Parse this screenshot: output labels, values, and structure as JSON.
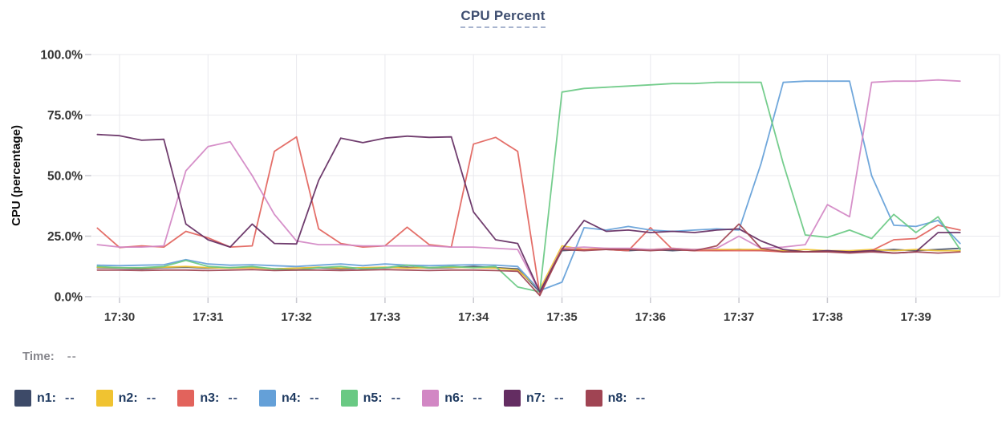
{
  "title": "CPU Percent",
  "y_axis": {
    "label": "CPU (percentage)",
    "tick_labels": [
      "0.0%",
      "25.0%",
      "50.0%",
      "75.0%",
      "100.0%"
    ],
    "tick_values": [
      0,
      25,
      50,
      75,
      100
    ]
  },
  "x_axis": {
    "tick_labels": [
      "17:30",
      "17:31",
      "17:32",
      "17:33",
      "17:34",
      "17:35",
      "17:36",
      "17:37",
      "17:38",
      "17:39"
    ],
    "tick_minutes": [
      30,
      31,
      32,
      33,
      34,
      35,
      36,
      37,
      38,
      39
    ]
  },
  "time_row": {
    "label": "Time:",
    "value": "--"
  },
  "legend": {
    "items": [
      {
        "label": "n1:",
        "value": "--",
        "color": "#3d4a68"
      },
      {
        "label": "n2:",
        "value": "--",
        "color": "#f0c331"
      },
      {
        "label": "n3:",
        "value": "--",
        "color": "#e2635c"
      },
      {
        "label": "n4:",
        "value": "--",
        "color": "#64a0d8"
      },
      {
        "label": "n5:",
        "value": "--",
        "color": "#69c983"
      },
      {
        "label": "n6:",
        "value": "--",
        "color": "#d287c4"
      },
      {
        "label": "n7:",
        "value": "--",
        "color": "#642d62"
      },
      {
        "label": "n8:",
        "value": "--",
        "color": "#a04453"
      }
    ]
  },
  "chart_data": {
    "type": "line",
    "title": "CPU Percent",
    "ylabel": "CPU (percentage)",
    "ylim": [
      0,
      100
    ],
    "grid": true,
    "legend_position": "bottom",
    "x_minutes_after_17h": [
      29.75,
      30,
      30.25,
      30.5,
      30.75,
      31,
      31.25,
      31.5,
      31.75,
      32,
      32.25,
      32.5,
      32.75,
      33,
      33.25,
      33.5,
      33.75,
      34,
      34.25,
      34.5,
      34.75,
      35,
      35.25,
      35.5,
      35.75,
      36,
      36.25,
      36.5,
      36.75,
      37,
      37.25,
      37.5,
      37.75,
      38,
      38.25,
      38.5,
      38.75,
      39,
      39.25,
      39.5
    ],
    "series": [
      {
        "name": "n1",
        "color": "#3d4a68",
        "values": [
          12,
          11.8,
          11.5,
          12,
          12.2,
          11.8,
          12,
          12.2,
          11.5,
          11.8,
          12,
          11.5,
          11.8,
          12,
          12.2,
          11.8,
          12,
          12.5,
          12,
          11.5,
          2,
          19,
          19.5,
          19.5,
          19,
          19.5,
          19,
          19.5,
          19,
          19.5,
          19,
          19,
          18.5,
          19,
          18.5,
          19,
          19.5,
          19,
          19.5,
          20
        ]
      },
      {
        "name": "n2",
        "color": "#f0c331",
        "values": [
          12.2,
          12,
          11.8,
          12.2,
          12.5,
          12,
          11.8,
          12,
          11.5,
          11.8,
          12.2,
          11.8,
          12,
          12.2,
          11.8,
          12,
          12.2,
          12,
          11.8,
          11,
          3,
          21,
          19.5,
          20,
          19.5,
          19.5,
          20,
          19.5,
          19.5,
          19.5,
          19.5,
          19,
          19.5,
          19,
          19,
          19.5,
          19,
          19.5,
          19,
          19
        ]
      },
      {
        "name": "n3",
        "color": "#e2635c",
        "values": [
          28.3,
          20.3,
          21,
          20.5,
          27,
          24.3,
          20.5,
          21,
          60,
          66,
          28,
          22,
          20.5,
          21,
          28.7,
          21.5,
          20.5,
          63,
          65.8,
          60,
          1,
          19.5,
          19.5,
          19.5,
          19,
          28.5,
          19.5,
          19,
          19,
          19,
          19,
          18.5,
          18.5,
          18.5,
          18.5,
          19,
          23.5,
          24,
          29.5,
          27.5
        ]
      },
      {
        "name": "n4",
        "color": "#64a0d8",
        "values": [
          13,
          12.8,
          13,
          13.2,
          15.3,
          13.5,
          13,
          13.2,
          12.8,
          12.5,
          13,
          13.5,
          12.8,
          13.5,
          13,
          12.8,
          13,
          13.2,
          13,
          12.5,
          2.5,
          6,
          28.5,
          27.5,
          29,
          27.5,
          27,
          27.5,
          28,
          27.5,
          55,
          88.5,
          89,
          89,
          89,
          50,
          29.5,
          29,
          31.5,
          22
        ]
      },
      {
        "name": "n5",
        "color": "#69c983",
        "values": [
          12.5,
          12,
          12,
          12.5,
          15,
          12.5,
          12,
          12.5,
          11.5,
          11,
          12,
          12.5,
          11.5,
          12,
          13,
          12,
          12.5,
          12,
          12.5,
          4,
          2,
          84.5,
          86,
          86.5,
          87,
          87.5,
          88,
          88,
          88.5,
          88.5,
          88.5,
          55,
          25.5,
          24.5,
          27.5,
          24,
          34,
          26.5,
          33,
          19.5
        ]
      },
      {
        "name": "n6",
        "color": "#d287c4",
        "values": [
          21.5,
          20.5,
          20.5,
          21,
          52,
          62,
          64,
          50,
          34,
          23,
          21.5,
          21.5,
          21,
          21,
          21,
          21,
          20.5,
          20.5,
          20,
          19.5,
          2,
          20,
          20.5,
          20,
          20,
          19.5,
          20,
          19.5,
          20,
          25,
          20,
          20.5,
          21.5,
          38,
          33,
          88.5,
          89,
          89,
          89.5,
          89
        ]
      },
      {
        "name": "n7",
        "color": "#642d62",
        "values": [
          67,
          66.5,
          64.6,
          65,
          30,
          23.5,
          20.5,
          30,
          22,
          21.8,
          48,
          65.5,
          63.6,
          65.5,
          66.3,
          65.8,
          66,
          35,
          23.5,
          22,
          2,
          19.5,
          31.5,
          27,
          27.5,
          26.5,
          27,
          26.5,
          27.5,
          28,
          23,
          19.5,
          18.5,
          19,
          18.5,
          19,
          18,
          18.5,
          26.5,
          26.5
        ]
      },
      {
        "name": "n8",
        "color": "#a04453",
        "values": [
          11,
          11,
          10.8,
          11,
          11,
          10.8,
          11,
          11.2,
          10.8,
          11,
          11,
          10.8,
          11,
          11.2,
          11,
          10.8,
          11,
          11,
          10.8,
          10.5,
          0.5,
          19.5,
          19,
          19.5,
          19.5,
          19,
          19.5,
          19,
          21,
          30,
          20,
          18.5,
          18.5,
          18.5,
          18,
          18.5,
          18,
          18.5,
          18,
          18.5
        ]
      }
    ]
  },
  "style": {
    "grid_color": "#e9e9ee",
    "tick_color": "#c9c9d0",
    "title_color": "#3e4e70"
  }
}
